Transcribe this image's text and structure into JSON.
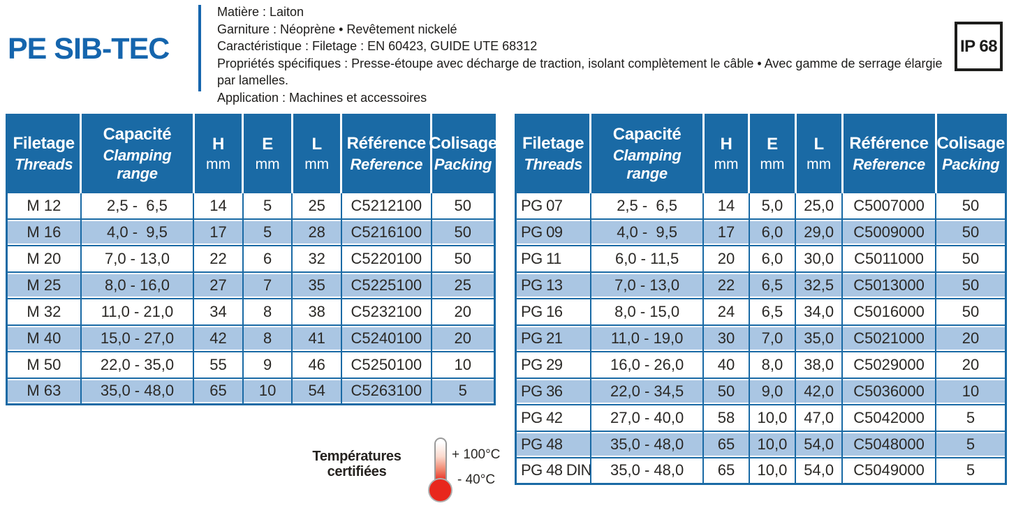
{
  "colors": {
    "table_blue": "#1a6aa5",
    "row_alt_blue": "#aac6e3",
    "title_blue": "#1565ad",
    "thermometer_red": "#e8271d",
    "ip_border_black": "#1d1d1b",
    "text_dark": "#262321"
  },
  "header": {
    "title": "PE SIB-TEC",
    "ip_rating": "IP 68",
    "info_lines": [
      "Matière : Laiton",
      "Garniture : Néoprène • Revêtement nickelé",
      "Caractéristique : Filetage : EN 60423, GUIDE UTE 68312",
      "Propriétés spécifiques : Presse-étoupe avec décharge de traction, isolant complètement le câble • Avec gamme de serrage élargie par lamelles.",
      "Application : Machines et accessoires"
    ]
  },
  "table_headers": {
    "filetage": "Filetage",
    "threads": "Threads",
    "capacite": "Capacité",
    "clamping_range": "Clamping range",
    "h": "H",
    "e": "E",
    "l": "L",
    "mm": "mm",
    "reference_fr": "Référence",
    "reference_en": "Reference",
    "colisage": "Colisage",
    "packing": "Packing"
  },
  "metric_table": {
    "rows": [
      [
        "M 12",
        "2,5 -  6,5",
        "14",
        "5",
        "25",
        "C5212100",
        "50"
      ],
      [
        "M 16",
        "4,0 -  9,5",
        "17",
        "5",
        "28",
        "C5216100",
        "50"
      ],
      [
        "M 20",
        "7,0 - 13,0",
        "22",
        "6",
        "32",
        "C5220100",
        "50"
      ],
      [
        "M 25",
        "8,0 - 16,0",
        "27",
        "7",
        "35",
        "C5225100",
        "25"
      ],
      [
        "M 32",
        "11,0 - 21,0",
        "34",
        "8",
        "38",
        "C5232100",
        "20"
      ],
      [
        "M 40",
        "15,0 - 27,0",
        "42",
        "8",
        "41",
        "C5240100",
        "20"
      ],
      [
        "M 50",
        "22,0 - 35,0",
        "55",
        "9",
        "46",
        "C5250100",
        "10"
      ],
      [
        "M 63",
        "35,0 - 48,0",
        "65",
        "10",
        "54",
        "C5263100",
        "5"
      ]
    ]
  },
  "pg_table": {
    "rows": [
      [
        "PG 07",
        "2,5 -  6,5",
        "14",
        "5,0",
        "25,0",
        "C5007000",
        "50"
      ],
      [
        "PG 09",
        "4,0 -  9,5",
        "17",
        "6,0",
        "29,0",
        "C5009000",
        "50"
      ],
      [
        "PG 11",
        "6,0 - 11,5",
        "20",
        "6,0",
        "30,0",
        "C5011000",
        "50"
      ],
      [
        "PG 13",
        "7,0 - 13,0",
        "22",
        "6,5",
        "32,5",
        "C5013000",
        "50"
      ],
      [
        "PG 16",
        "8,0 - 15,0",
        "24",
        "6,5",
        "34,0",
        "C5016000",
        "50"
      ],
      [
        "PG 21",
        "11,0 - 19,0",
        "30",
        "7,0",
        "35,0",
        "C5021000",
        "20"
      ],
      [
        "PG 29",
        "16,0 - 26,0",
        "40",
        "8,0",
        "38,0",
        "C5029000",
        "20"
      ],
      [
        "PG 36",
        "22,0 - 34,5",
        "50",
        "9,0",
        "42,0",
        "C5036000",
        "10"
      ],
      [
        "PG 42",
        "27,0 - 40,0",
        "58",
        "10,0",
        "47,0",
        "C5042000",
        "5"
      ],
      [
        "PG 48",
        "35,0 - 48,0",
        "65",
        "10,0",
        "54,0",
        "C5048000",
        "5"
      ],
      [
        "PG 48 DIN",
        "35,0 - 48,0",
        "65",
        "10,0",
        "54,0",
        "C5049000",
        "5"
      ]
    ]
  },
  "temperature": {
    "label_line1": "Températures",
    "label_line2": "certifiées",
    "max_label": "+ 100°C",
    "min_label": "- 40°C"
  }
}
